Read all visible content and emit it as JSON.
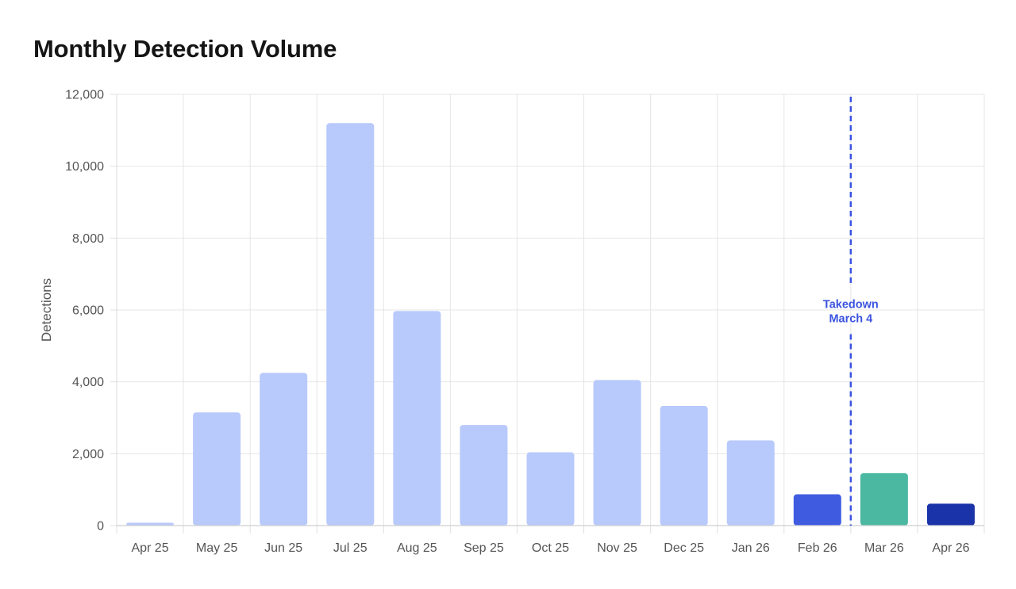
{
  "chart_data": {
    "type": "bar",
    "title": "Monthly Detection Volume",
    "xlabel": "",
    "ylabel": "Detections",
    "ylim": [
      0,
      12000
    ],
    "yticks": [
      0,
      2000,
      4000,
      6000,
      8000,
      10000,
      12000
    ],
    "ytick_labels": [
      "0",
      "2,000",
      "4,000",
      "6,000",
      "8,000",
      "10,000",
      "12,000"
    ],
    "grid": true,
    "legend": "none",
    "categories": [
      "Apr 25",
      "May 25",
      "Jun 25",
      "Jul 25",
      "Aug 25",
      "Sep 25",
      "Oct 25",
      "Nov 25",
      "Dec 25",
      "Jan 26",
      "Feb 26",
      "Mar 26",
      "Apr 26"
    ],
    "values": [
      80,
      3150,
      4250,
      11200,
      5970,
      2800,
      2040,
      4050,
      3330,
      2370,
      870,
      1460,
      610
    ],
    "colors": [
      "#b8c9fb",
      "#b8c9fb",
      "#b8c9fb",
      "#b8c9fb",
      "#b8c9fb",
      "#b8c9fb",
      "#b8c9fb",
      "#b8c9fb",
      "#b8c9fb",
      "#b8c9fb",
      "#3f5ce1",
      "#4bb8a2",
      "#1b33a8"
    ],
    "annotation": {
      "type": "vertical-line",
      "category_boundary": [
        "Feb 26",
        "Mar 26"
      ],
      "label_lines": [
        "Takedown",
        "March 4"
      ],
      "color": "#3b53e0"
    }
  }
}
